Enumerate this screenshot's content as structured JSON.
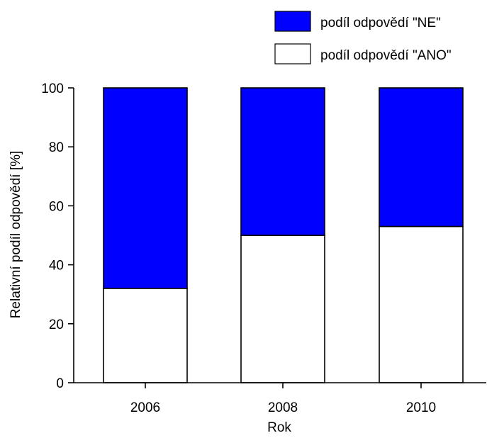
{
  "chart_data": {
    "type": "bar",
    "stacked": true,
    "title": "",
    "xlabel": "Rok",
    "ylabel": "Relativní podíl odpovědí [%]",
    "ylim": [
      0,
      100
    ],
    "yticks": [
      "0",
      "20",
      "40",
      "60",
      "80",
      "100"
    ],
    "categories": [
      "2006",
      "2008",
      "2010"
    ],
    "series": [
      {
        "name": "podíl odpovědí \"ANO\"",
        "values": [
          32,
          50,
          53
        ],
        "color": "#ffffff"
      },
      {
        "name": "podíl odpovědí \"NE\"",
        "values": [
          68,
          50,
          47
        ],
        "color": "#0000ff"
      }
    ],
    "legend": {
      "position": "top-right",
      "items": [
        {
          "label": "podíl odpovědí \"NE\"",
          "color": "#0000ff"
        },
        {
          "label": "podíl odpovědí \"ANO\"",
          "color": "#ffffff"
        }
      ]
    },
    "grid": false
  }
}
